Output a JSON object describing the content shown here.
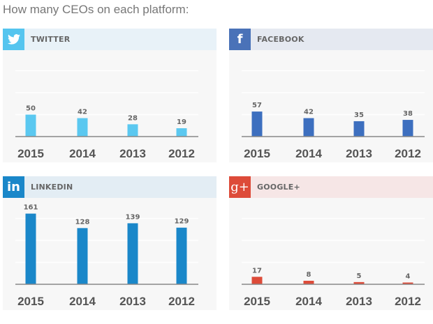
{
  "title": "How many CEOs on each platform:",
  "chart_data": [
    {
      "type": "bar",
      "platform": "TWITTER",
      "icon": "twitter-bird-icon",
      "icon_text": "",
      "color": "#5bc8f0",
      "header_bg": "#e8f2f8",
      "icon_bg": "#55c5ef",
      "categories": [
        "2015",
        "2014",
        "2013",
        "2012"
      ],
      "values": [
        50,
        42,
        28,
        19
      ]
    },
    {
      "type": "bar",
      "platform": "FACEBOOK",
      "icon": "facebook-icon",
      "icon_text": "f",
      "color": "#3d6fbf",
      "header_bg": "#e5e9f1",
      "icon_bg": "#4a72b8",
      "categories": [
        "2015",
        "2014",
        "2013",
        "2012"
      ],
      "values": [
        57,
        42,
        35,
        38
      ]
    },
    {
      "type": "bar",
      "platform": "LINKEDIN",
      "icon": "linkedin-icon",
      "icon_text": "in",
      "color": "#1a87c9",
      "header_bg": "#e3edf4",
      "icon_bg": "#1a87c9",
      "categories": [
        "2015",
        "2014",
        "2013",
        "2012"
      ],
      "values": [
        161,
        128,
        139,
        129
      ]
    },
    {
      "type": "bar",
      "platform": "GOOGLE+",
      "icon": "google-plus-icon",
      "icon_text": "g+",
      "color": "#dd4b39",
      "header_bg": "#f6e6e6",
      "icon_bg": "#dd4b39",
      "categories": [
        "2015",
        "2014",
        "2013",
        "2012"
      ],
      "values": [
        17,
        8,
        5,
        4
      ]
    }
  ]
}
